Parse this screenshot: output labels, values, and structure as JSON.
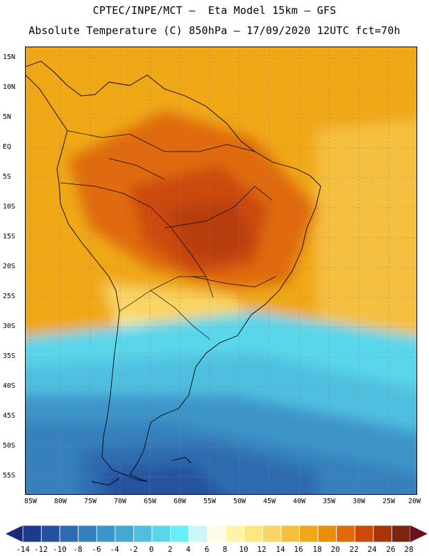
{
  "header": {
    "line1": "CPTEC/INPE/MCT –  Eta Model 15km – GFS",
    "line2": "Absolute Temperature (C) 850hPa – 17/09/2020 12UTC fct=70h"
  },
  "axes": {
    "lat_labels": [
      "15N",
      "10N",
      "5N",
      "EQ",
      "5S",
      "10S",
      "15S",
      "20S",
      "25S",
      "30S",
      "35S",
      "40S",
      "45S",
      "50S",
      "55S"
    ],
    "lon_labels": [
      "85W",
      "80W",
      "75W",
      "70W",
      "65W",
      "60W",
      "55W",
      "50W",
      "45W",
      "40W",
      "35W",
      "30W",
      "25W",
      "20W"
    ]
  },
  "colorbar": {
    "labels": [
      "-14",
      "-12",
      "-10",
      "-8",
      "-6",
      "-4",
      "-2",
      "0",
      "2",
      "4",
      "6",
      "8",
      "10",
      "12",
      "14",
      "16",
      "18",
      "20",
      "22",
      "24",
      "26",
      "28"
    ],
    "colors": [
      "#1f3a8a",
      "#25529e",
      "#2e6aaf",
      "#3680bd",
      "#3c94c9",
      "#44a8d5",
      "#4fbfe0",
      "#5ad6ea",
      "#64f0f6",
      "#cdf6fb",
      "#fffbe6",
      "#fff5a8",
      "#fde880",
      "#fad564",
      "#f5c040",
      "#f0a818",
      "#ea8c0c",
      "#e06a0a",
      "#cc4a08",
      "#a83408",
      "#7c2410"
    ],
    "arrow_left_color": "#1a2a7a",
    "arrow_right_color": "#6a1020"
  }
}
